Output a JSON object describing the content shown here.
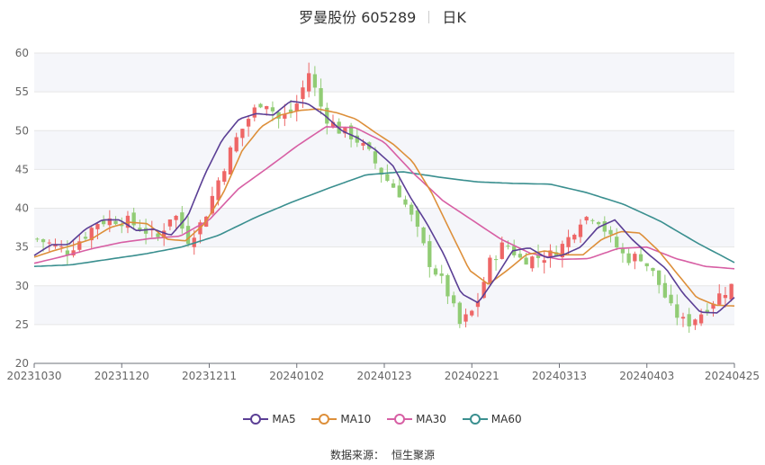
{
  "header": {
    "title": "罗曼股份 605289",
    "period": "日K"
  },
  "source": {
    "label": "数据来源：",
    "provider": "恒生聚源"
  },
  "colors": {
    "up": "#ee6666",
    "down": "#91cc75",
    "ma5": "#5b3f95",
    "ma10": "#dd8f3a",
    "ma30": "#d75fa4",
    "ma60": "#3a8f8f",
    "grid": "#e6e6e6",
    "band": "#f5f6fa"
  },
  "legend": [
    {
      "name": "MA5",
      "color": "#5b3f95"
    },
    {
      "name": "MA10",
      "color": "#dd8f3a"
    },
    {
      "name": "MA30",
      "color": "#d75fa4"
    },
    {
      "name": "MA60",
      "color": "#3a8f8f"
    }
  ],
  "chart_data": {
    "type": "candlestick",
    "ylim": [
      20,
      60
    ],
    "yticks": [
      20,
      25,
      30,
      35,
      40,
      45,
      50,
      55,
      60
    ],
    "xticks": [
      "20231030",
      "20231120",
      "20231211",
      "20240102",
      "20240123",
      "20240221",
      "20240313",
      "20240403",
      "20240425"
    ],
    "close_path": [
      36,
      35.3,
      34.5,
      36.2,
      38.2,
      38.6,
      38.3,
      37.3,
      36.2,
      39.6,
      36,
      38.4,
      43.6,
      48.3,
      51.6,
      54.2,
      51.5,
      52.5,
      57.5,
      52,
      50.1,
      49.2,
      47,
      44,
      42,
      38,
      33,
      30,
      25,
      27,
      33,
      35.6,
      33.5,
      33.6,
      34,
      35.5,
      38.6,
      39.2,
      36,
      33.5,
      33.8,
      31,
      27,
      25,
      26.5,
      28.5,
      30
    ],
    "ma5": [
      33.9,
      35.3,
      35.3,
      37.3,
      38.5,
      38.5,
      37.1,
      37.3,
      36.5,
      39,
      44.4,
      48.8,
      51.5,
      52.2,
      52,
      53.8,
      53.5,
      52,
      50,
      49,
      47.5,
      45.5,
      41.5,
      38,
      34,
      29,
      27.8,
      31,
      34.5,
      34.9,
      33.6,
      34,
      35,
      37.5,
      38.5,
      36,
      34,
      32.2,
      29,
      26.6,
      26.5,
      28.5
    ],
    "ma10": [
      33.7,
      34.5,
      35.2,
      36,
      37.5,
      38.2,
      38,
      36,
      35.8,
      38,
      42,
      47.5,
      50.5,
      52,
      52.6,
      52.8,
      52.3,
      51.5,
      49.8,
      48.2,
      46,
      42,
      37,
      32,
      30.2,
      32,
      34,
      34.5,
      34,
      34,
      36,
      37,
      36.8,
      34.5,
      31.5,
      28.5,
      27.5,
      27.4
    ],
    "ma30": [
      32.9,
      33.8,
      34.8,
      35.6,
      36.1,
      36.4,
      38.5,
      42.5,
      45.2,
      48,
      50.5,
      50.4,
      48.5,
      44.5,
      41,
      38.5,
      36,
      34.2,
      33.4,
      33.5,
      34.8,
      35,
      33.5,
      32.5,
      32.2
    ],
    "ma60": [
      32.5,
      32.7,
      33.4,
      34.1,
      35,
      36.5,
      38.8,
      40.8,
      42.6,
      44.3,
      44.7,
      44,
      43.4,
      43.2,
      43.1,
      42,
      40.5,
      38.3,
      35.5,
      33
    ]
  }
}
